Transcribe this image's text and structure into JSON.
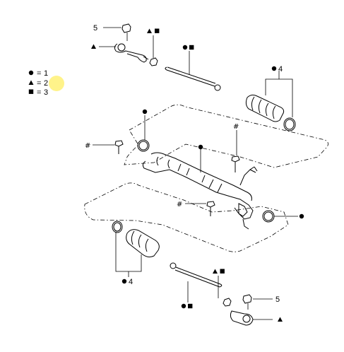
{
  "legend": {
    "item1": {
      "symbol": "●",
      "eq": "= ",
      "value": "1"
    },
    "item2": {
      "symbol": "▲",
      "eq": "= ",
      "value": "2",
      "highlighted": true
    },
    "item3": {
      "symbol": "■",
      "eq": "= ",
      "value": "3"
    }
  },
  "callouts": {
    "nut_top": "5",
    "nut_bottom": "5",
    "boot_top_count": "4",
    "boot_bottom_count": "4",
    "hash": "#"
  },
  "colors": {
    "highlight": "#fff176",
    "line": "#000000"
  }
}
